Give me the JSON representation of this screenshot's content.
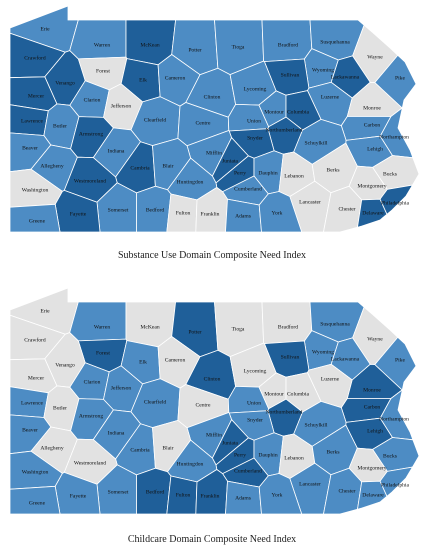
{
  "maps": [
    {
      "caption": "Substance Use Domain Composite Need Index",
      "counties": [
        "Erie",
        "Crawford",
        "Warren",
        "McKean",
        "Potter",
        "Tioga",
        "Bradford",
        "Susquehanna",
        "Wayne",
        "Forest",
        "Venango",
        "Elk",
        "Cameron",
        "Wyoming",
        "Lackawanna",
        "Sullivan",
        "Pike",
        "Mercer",
        "Clarion",
        "Jefferson",
        "Clinton",
        "Lycoming",
        "Luzerne",
        "Monroe",
        "Lawrence",
        "Butler",
        "Clearfield",
        "Centre",
        "Montour",
        "Columbia",
        "Union",
        "Northumberland",
        "Carbon",
        "Armstrong",
        "Snyder",
        "Schuylkill",
        "Northampton",
        "Lehigh",
        "Beaver",
        "Indiana",
        "Mifflin",
        "Allegheny",
        "Cambria",
        "Blair",
        "Juniata",
        "Perry",
        "Dauphin",
        "Lebanon",
        "Berks",
        "Bucks",
        "Huntingdon",
        "Washington",
        "Westmoreland",
        "Cumberland",
        "Montgomery",
        "Lancaster",
        "Chester",
        "Philadelphia",
        "Delaware",
        "Somerset",
        "Bedford",
        "Fulton",
        "Franklin",
        "Adams",
        "York",
        "Fayette",
        "Greene"
      ],
      "colors": [
        "#4d8cc4",
        "#1f5f99",
        "#4d8cc4",
        "#1f5f99",
        "#4d8cc4",
        "#4d8cc4",
        "#4d8cc4",
        "#4d8cc4",
        "#e2e2e2",
        "#e2e2e2",
        "#1f5f99",
        "#1f5f99",
        "#4d8cc4",
        "#4d8cc4",
        "#1f5f99",
        "#1f5f99",
        "#4d8cc4",
        "#1f5f99",
        "#4d8cc4",
        "#e2e2e2",
        "#4d8cc4",
        "#4d8cc4",
        "#4d8cc4",
        "#e2e2e2",
        "#1f5f99",
        "#4d8cc4",
        "#4d8cc4",
        "#4d8cc4",
        "#4d8cc4",
        "#1f5f99",
        "#4d8cc4",
        "#1f5f99",
        "#4d8cc4",
        "#1f5f99",
        "#1f5f99",
        "#4d8cc4",
        "#4d8cc4",
        "#4d8cc4",
        "#4d8cc4",
        "#4d8cc4",
        "#4d8cc4",
        "#4d8cc4",
        "#1f5f99",
        "#4d8cc4",
        "#1f5f99",
        "#1f5f99",
        "#4d8cc4",
        "#e2e2e2",
        "#e2e2e2",
        "#e2e2e2",
        "#4d8cc4",
        "#e2e2e2",
        "#1f5f99",
        "#4d8cc4",
        "#e2e2e2",
        "#e2e2e2",
        "#e2e2e2",
        "#1f5f99",
        "#1f5f99",
        "#4d8cc4",
        "#4d8cc4",
        "#e2e2e2",
        "#e2e2e2",
        "#4d8cc4",
        "#4d8cc4",
        "#1f5f99",
        "#4d8cc4"
      ]
    },
    {
      "caption": "Childcare Domain Composite Need Index",
      "counties": [
        "Erie",
        "Crawford",
        "Warren",
        "McKean",
        "Potter",
        "Tioga",
        "Bradford",
        "Susquehanna",
        "Wayne",
        "Forest",
        "Venango",
        "Elk",
        "Cameron",
        "Wyoming",
        "Lackawanna",
        "Sullivan",
        "Pike",
        "Mercer",
        "Clarion",
        "Jefferson",
        "Clinton",
        "Lycoming",
        "Luzerne",
        "Monroe",
        "Lawrence",
        "Butler",
        "Clearfield",
        "Centre",
        "Montour",
        "Columbia",
        "Union",
        "Northumberland",
        "Carbon",
        "Armstrong",
        "Snyder",
        "Schuylkill",
        "Northampton",
        "Lehigh",
        "Beaver",
        "Indiana",
        "Mifflin",
        "Allegheny",
        "Cambria",
        "Blair",
        "Juniata",
        "Perry",
        "Dauphin",
        "Lebanon",
        "Berks",
        "Bucks",
        "Huntingdon",
        "Washington",
        "Westmoreland",
        "Cumberland",
        "Montgomery",
        "Lancaster",
        "Chester",
        "Philadelphia",
        "Delaware",
        "Somerset",
        "Bedford",
        "Fulton",
        "Franklin",
        "Adams",
        "York",
        "Fayette",
        "Greene"
      ],
      "colors": [
        "#e2e2e2",
        "#e2e2e2",
        "#4d8cc4",
        "#e2e2e2",
        "#1f5f99",
        "#e2e2e2",
        "#e2e2e2",
        "#4d8cc4",
        "#e2e2e2",
        "#1f5f99",
        "#e2e2e2",
        "#4d8cc4",
        "#e2e2e2",
        "#4d8cc4",
        "#4d8cc4",
        "#1f5f99",
        "#4d8cc4",
        "#e2e2e2",
        "#4d8cc4",
        "#4d8cc4",
        "#1f5f99",
        "#e2e2e2",
        "#e2e2e2",
        "#1f5f99",
        "#4d8cc4",
        "#e2e2e2",
        "#4d8cc4",
        "#e2e2e2",
        "#e2e2e2",
        "#e2e2e2",
        "#4d8cc4",
        "#1f5f99",
        "#1f5f99",
        "#4d8cc4",
        "#4d8cc4",
        "#4d8cc4",
        "#4d8cc4",
        "#1f5f99",
        "#4d8cc4",
        "#4d8cc4",
        "#4d8cc4",
        "#e2e2e2",
        "#4d8cc4",
        "#e2e2e2",
        "#1f5f99",
        "#1f5f99",
        "#4d8cc4",
        "#e2e2e2",
        "#4d8cc4",
        "#4d8cc4",
        "#4d8cc4",
        "#4d8cc4",
        "#e2e2e2",
        "#1f5f99",
        "#e2e2e2",
        "#4d8cc4",
        "#4d8cc4",
        "#4d8cc4",
        "#4d8cc4",
        "#4d8cc4",
        "#1f5f99",
        "#1f5f99",
        "#1f5f99",
        "#4d8cc4",
        "#4d8cc4",
        "#4d8cc4",
        "#4d8cc4"
      ]
    }
  ]
}
